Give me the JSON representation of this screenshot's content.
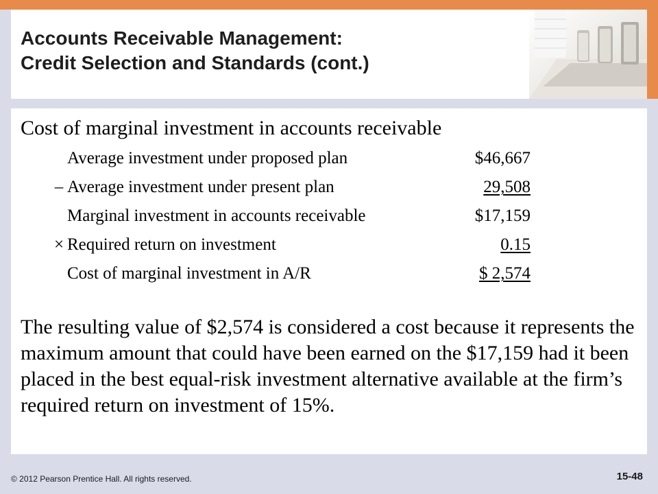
{
  "slide": {
    "title_line1": "Accounts Receivable Management:",
    "title_line2": "Credit Selection and Standards (cont.)",
    "heading": "Cost of marginal investment in accounts receivable",
    "calculation": [
      {
        "operator": "",
        "label": "Average investment under proposed plan",
        "value": "$46,667",
        "underlined": false
      },
      {
        "operator": "–",
        "label": "Average investment under present plan",
        "value": "29,508",
        "underlined": true
      },
      {
        "operator": "",
        "label": "Marginal investment in accounts receivable",
        "value": "$17,159",
        "underlined": false
      },
      {
        "operator": "×",
        "label": "Required return on investment",
        "value": "0.15",
        "underlined": true
      },
      {
        "operator": "",
        "label": "Cost of marginal investment in A/R",
        "value": "$ 2,574",
        "underlined": true
      }
    ],
    "paragraph": "The resulting value of $2,574 is considered a cost because it represents the maximum amount that could have been earned on the $17,159 had it been placed in the best equal-risk investment alternative available at the firm’s required return on investment of 15%."
  },
  "footer": {
    "copyright": "© 2012 Pearson Prentice Hall. All rights reserved.",
    "page_number": "15-48"
  },
  "colors": {
    "accent_orange": "#e88a4a",
    "background_lavender": "#d9dce8",
    "panel_white": "#ffffff"
  },
  "decor": {
    "photo": "conference-room-chairs-photo"
  }
}
